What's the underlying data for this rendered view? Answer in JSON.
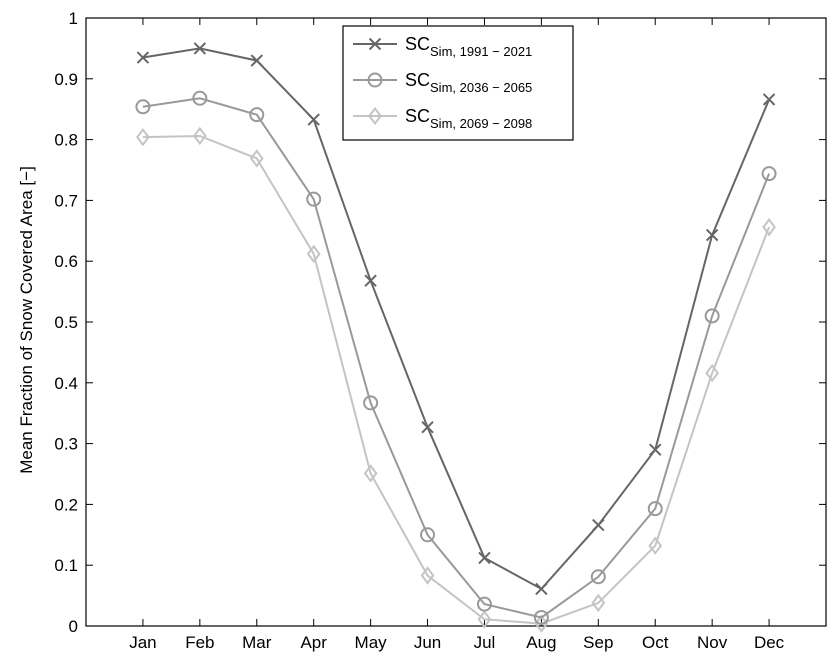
{
  "chart_data": {
    "type": "line",
    "title": "",
    "xlabel": "",
    "ylabel": "Mean Fraction of Snow Covered Area [−]",
    "categories": [
      "Jan",
      "Feb",
      "Mar",
      "Apr",
      "May",
      "Jun",
      "Jul",
      "Aug",
      "Sep",
      "Oct",
      "Nov",
      "Dec"
    ],
    "ylim": [
      0,
      1
    ],
    "yticks": [
      "0",
      "0.1",
      "0.2",
      "0.3",
      "0.4",
      "0.5",
      "0.6",
      "0.7",
      "0.8",
      "0.9",
      "1"
    ],
    "grid": false,
    "legend_position": "top-center",
    "series": [
      {
        "name_main": "SC",
        "name_sub": "Sim, 1991 − 2021",
        "marker": "x",
        "color": "#666666",
        "values": [
          0.935,
          0.95,
          0.93,
          0.833,
          0.568,
          0.327,
          0.112,
          0.061,
          0.166,
          0.29,
          0.643,
          0.866
        ]
      },
      {
        "name_main": "SC",
        "name_sub": "Sim, 2036 − 2065",
        "marker": "circle",
        "color": "#999999",
        "values": [
          0.854,
          0.868,
          0.841,
          0.702,
          0.367,
          0.15,
          0.036,
          0.014,
          0.081,
          0.193,
          0.51,
          0.744
        ]
      },
      {
        "name_main": "SC",
        "name_sub": "Sim, 2069 − 2098",
        "marker": "diamond",
        "color": "#c4c4c4",
        "values": [
          0.804,
          0.806,
          0.769,
          0.612,
          0.251,
          0.083,
          0.011,
          0.004,
          0.038,
          0.132,
          0.416,
          0.656
        ]
      }
    ]
  }
}
